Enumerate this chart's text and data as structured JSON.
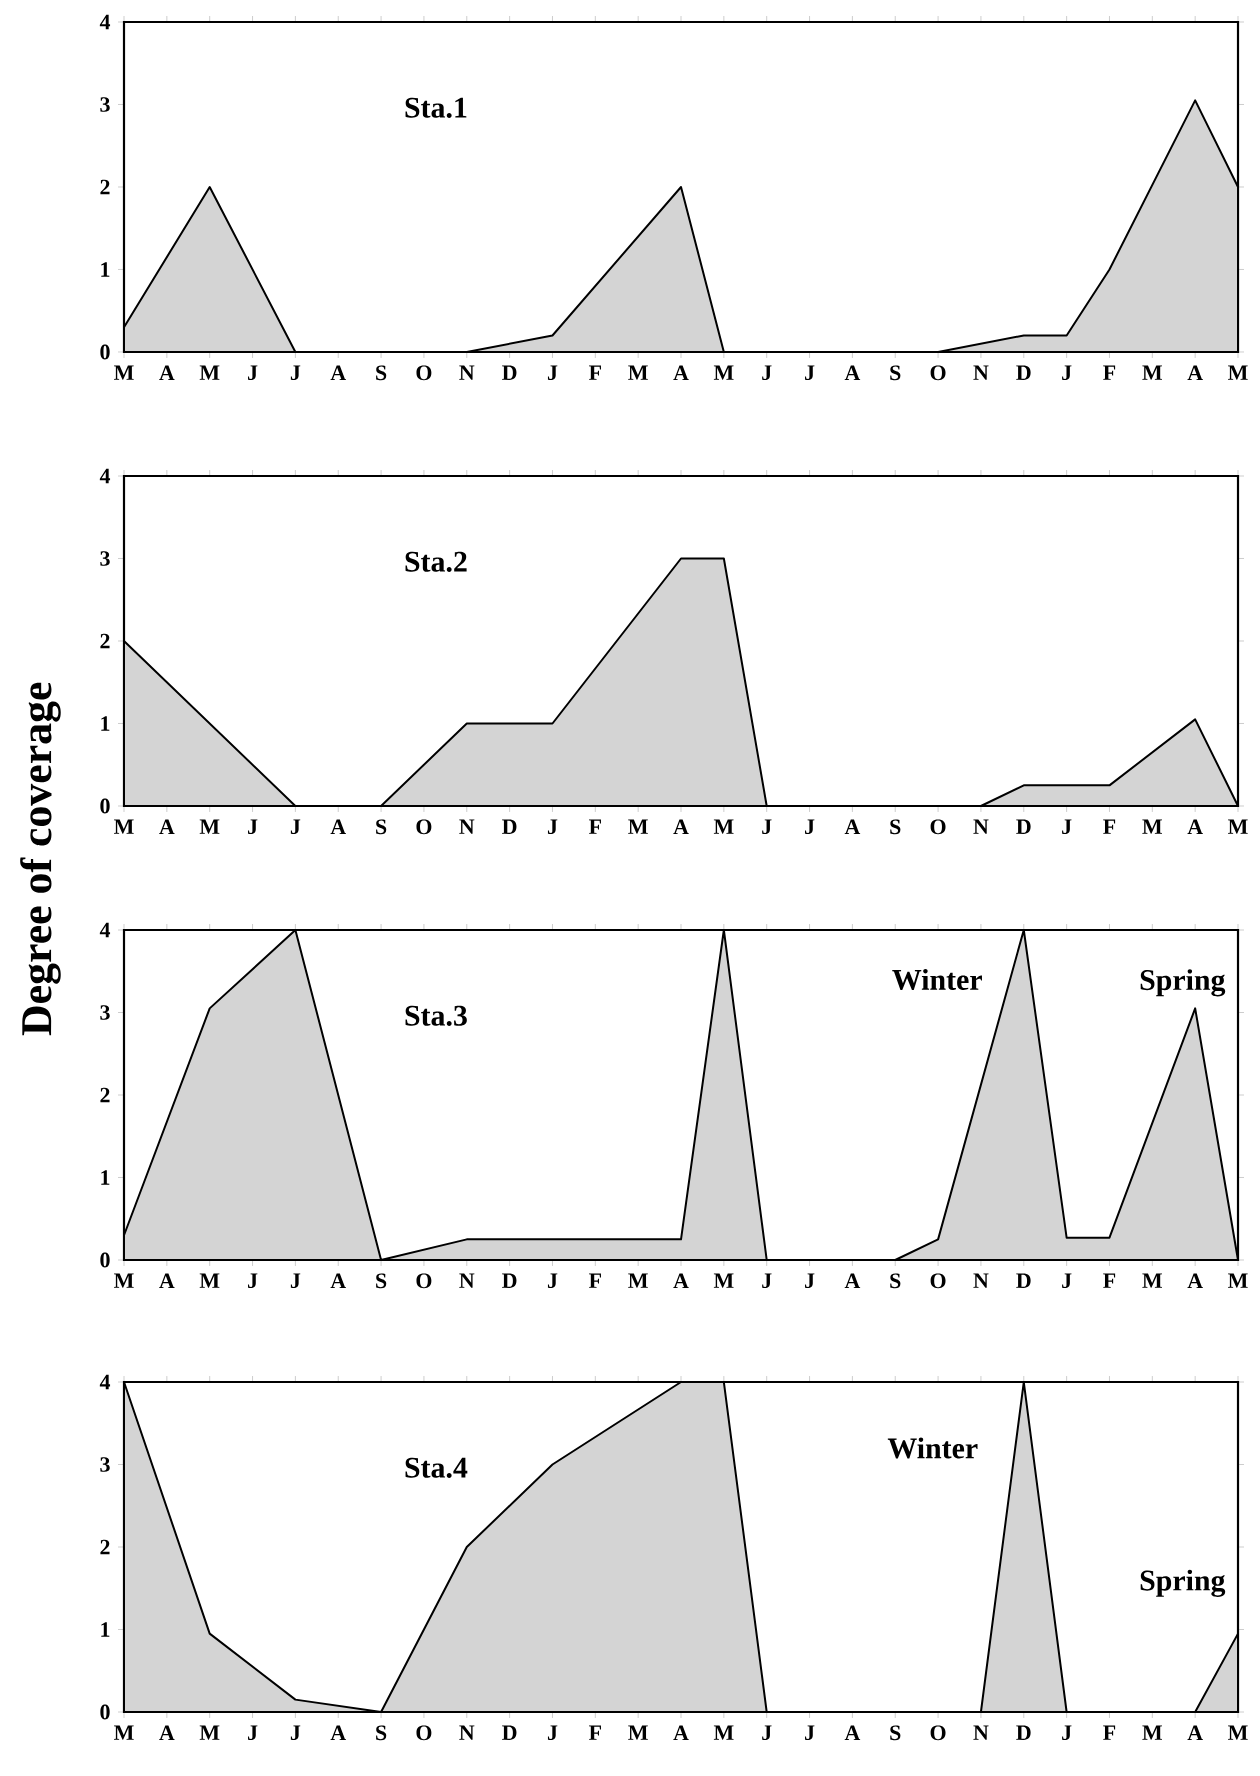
{
  "chart_data": [
    {
      "type": "area",
      "title": "Sta.1",
      "ylim": [
        0,
        4
      ],
      "yticks": [
        0,
        1,
        2,
        3,
        4
      ],
      "categories": [
        "M",
        "A",
        "M",
        "J",
        "J",
        "A",
        "S",
        "O",
        "N",
        "D",
        "J",
        "F",
        "M",
        "A",
        "M",
        "J",
        "J",
        "A",
        "S",
        "O",
        "N",
        "D",
        "J",
        "F",
        "M",
        "A",
        "M"
      ],
      "series": [
        {
          "color": "#d4d4d4",
          "values": [
            0.3,
            null,
            2,
            null,
            0,
            null,
            null,
            null,
            0,
            null,
            0.2,
            null,
            null,
            2,
            0,
            null,
            null,
            null,
            null,
            0,
            null,
            0.2,
            0.2,
            1,
            null,
            3.05,
            2
          ]
        }
      ]
    },
    {
      "type": "area",
      "title": "Sta.2",
      "ylabel": "Degree of coverage",
      "ylim": [
        0,
        4
      ],
      "yticks": [
        0,
        1,
        2,
        3,
        4
      ],
      "categories": [
        "M",
        "A",
        "M",
        "J",
        "J",
        "A",
        "S",
        "O",
        "N",
        "D",
        "J",
        "F",
        "M",
        "A",
        "M",
        "J",
        "J",
        "A",
        "S",
        "O",
        "N",
        "D",
        "J",
        "F",
        "M",
        "A",
        "M"
      ],
      "series": [
        {
          "color": "#d4d4d4",
          "values": [
            2,
            null,
            null,
            null,
            0,
            null,
            0,
            null,
            1,
            null,
            1,
            null,
            null,
            3,
            3,
            0,
            null,
            null,
            null,
            null,
            0,
            0.25,
            null,
            0.25,
            null,
            1.05,
            0
          ]
        }
      ]
    },
    {
      "type": "area",
      "title": "Sta.3",
      "ylim": [
        0,
        4
      ],
      "yticks": [
        0,
        1,
        2,
        3,
        4
      ],
      "categories": [
        "M",
        "A",
        "M",
        "J",
        "J",
        "A",
        "S",
        "O",
        "N",
        "D",
        "J",
        "F",
        "M",
        "A",
        "M",
        "J",
        "J",
        "A",
        "S",
        "O",
        "N",
        "D",
        "J",
        "F",
        "M",
        "A",
        "M"
      ],
      "annotations": [
        "Winter",
        "Spring"
      ],
      "series": [
        {
          "color": "#d4d4d4",
          "values": [
            0.3,
            null,
            3.05,
            null,
            4,
            null,
            0,
            null,
            0.25,
            null,
            null,
            null,
            null,
            0.25,
            4,
            0,
            null,
            null,
            0,
            0.25,
            null,
            4,
            0.27,
            0.27,
            null,
            3.05,
            0
          ]
        }
      ]
    },
    {
      "type": "area",
      "title": "Sta.4",
      "ylim": [
        0,
        4
      ],
      "yticks": [
        0,
        1,
        2,
        3,
        4
      ],
      "categories": [
        "M",
        "A",
        "M",
        "J",
        "J",
        "A",
        "S",
        "O",
        "N",
        "D",
        "J",
        "F",
        "M",
        "A",
        "M",
        "J",
        "J",
        "A",
        "S",
        "O",
        "N",
        "D",
        "J",
        "F",
        "M",
        "A",
        "M"
      ],
      "annotations": [
        "Winter",
        "Spring"
      ],
      "series": [
        {
          "color": "#d4d4d4",
          "values": [
            4,
            null,
            0.95,
            null,
            0.15,
            null,
            0,
            null,
            2,
            null,
            3,
            null,
            null,
            4,
            4,
            0,
            null,
            null,
            null,
            null,
            0,
            4,
            0,
            null,
            null,
            0,
            0.95
          ]
        }
      ]
    }
  ]
}
